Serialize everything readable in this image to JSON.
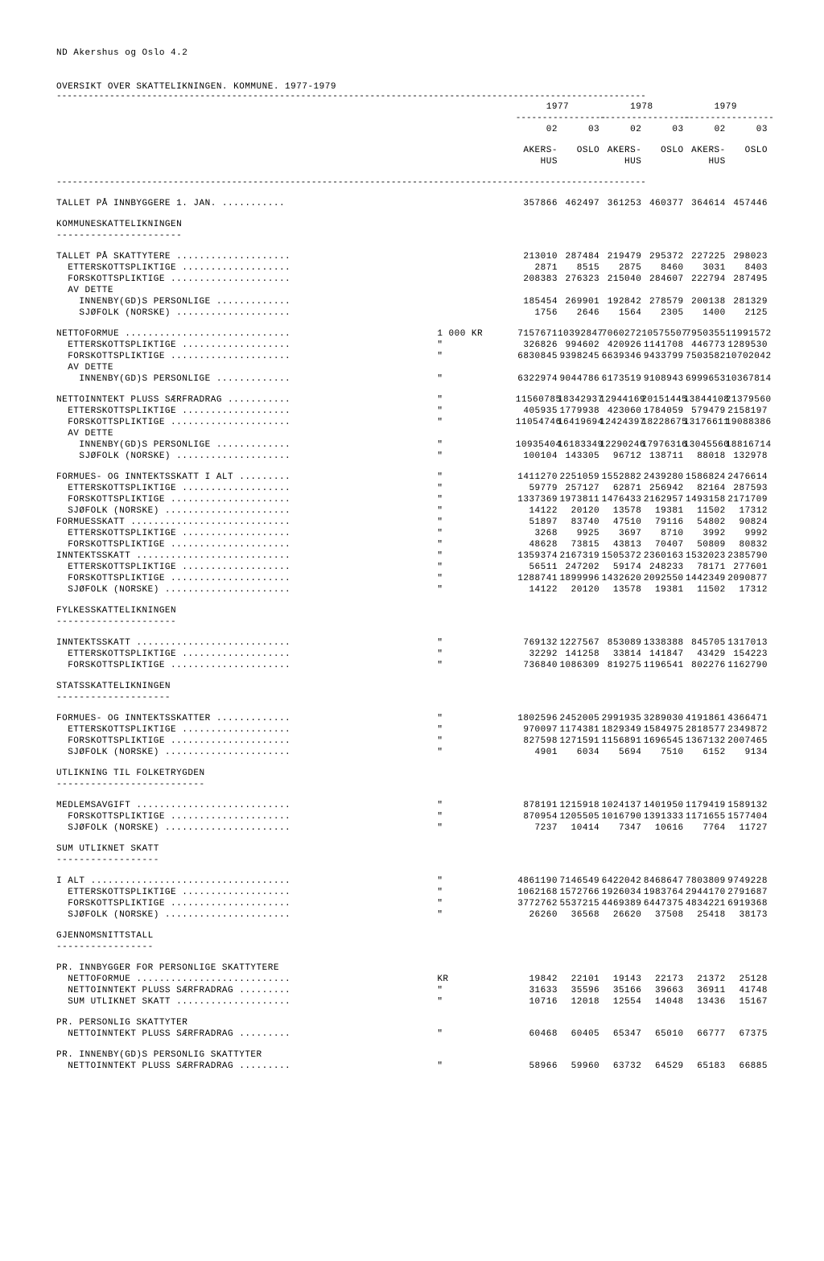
{
  "header_line": "ND Akershus og Oslo  4.2",
  "title": "OVERSIKT OVER SKATTELIKNINGEN. KOMMUNE. 1977-1979",
  "year_headers": [
    "1977",
    "1978",
    "1979"
  ],
  "col_codes": [
    "02",
    "03",
    "02",
    "03",
    "02",
    "03"
  ],
  "col_names_l1": [
    "AKERS-",
    "OSLO",
    "AKERS-",
    "OSLO",
    "AKERS-",
    "OSLO"
  ],
  "col_names_l2": [
    "HUS",
    "",
    "HUS",
    "",
    "HUS",
    ""
  ],
  "unit_1000kr": "1 000 KR",
  "unit_ditto": "\"",
  "unit_kr": "KR",
  "rows": {
    "r0": {
      "label": "TALLET PÅ INNBYGGERE 1. JAN. ...........",
      "unit": "",
      "v": [
        "357866",
        "462497",
        "361253",
        "460377",
        "364614",
        "457446"
      ]
    },
    "s1": {
      "label": "KOMMUNESKATTELIKNINGEN"
    },
    "s1u": {
      "label": "----------------------"
    },
    "r1": {
      "label": "TALLET PÅ SKATTYTERE ....................",
      "unit": "",
      "v": [
        "213010",
        "287484",
        "219479",
        "295372",
        "227225",
        "298023"
      ]
    },
    "r2": {
      "label": "  ETTERSKOTTSPLIKTIGE ...................",
      "unit": "",
      "v": [
        "2871",
        "8515",
        "2875",
        "8460",
        "3031",
        "8403"
      ]
    },
    "r3": {
      "label": "  FORSKOTTSPLIKTIGE .....................",
      "unit": "",
      "v": [
        "208383",
        "276323",
        "215040",
        "284607",
        "222794",
        "287495"
      ]
    },
    "r4": {
      "label": "  AV DETTE",
      "unit": "",
      "v": [
        "",
        "",
        "",
        "",
        "",
        ""
      ]
    },
    "r5": {
      "label": "    INNENBY(GD)S PERSONLIGE .............",
      "unit": "",
      "v": [
        "185454",
        "269901",
        "192842",
        "278579",
        "200138",
        "281329"
      ]
    },
    "r6": {
      "label": "    SJØFOLK (NORSKE) ....................",
      "unit": "",
      "v": [
        "1756",
        "2646",
        "1564",
        "2305",
        "1400",
        "2125"
      ]
    },
    "r7": {
      "label": "NETTOFORMUE .............................",
      "unit": "1 000 KR",
      "v": [
        "7157671",
        "10392847",
        "7060272",
        "10575507",
        "7950355",
        "11991572"
      ]
    },
    "r8": {
      "label": "  ETTERSKOTTSPLIKTIGE ...................",
      "unit": "\"",
      "v": [
        "326826",
        "994602",
        "420926",
        "1141708",
        "446773",
        "1289530"
      ]
    },
    "r9": {
      "label": "  FORSKOTTSPLIKTIGE .....................",
      "unit": "\"",
      "v": [
        "6830845",
        "9398245",
        "6639346",
        "9433799",
        "7503582",
        "10702042"
      ]
    },
    "r10": {
      "label": "  AV DETTE",
      "unit": "",
      "v": [
        "",
        "",
        "",
        "",
        "",
        ""
      ]
    },
    "r11": {
      "label": "    INNENBY(GD)S PERSONLIGE .............",
      "unit": "\"",
      "v": [
        "6322974",
        "9044786",
        "6173519",
        "9108943",
        "6999653",
        "10367814"
      ]
    },
    "r12": {
      "label": "NETTOINNTEKT PLUSS SÆRFRADRAG ...........",
      "unit": "\"",
      "v": [
        "11560785",
        "18342937",
        "12944169",
        "20151445",
        "13844108",
        "21379560"
      ]
    },
    "r13": {
      "label": "  ETTERSKOTTSPLIKTIGE ...................",
      "unit": "\"",
      "v": [
        "405935",
        "1779938",
        "423060",
        "1784059",
        "579479",
        "2158197"
      ]
    },
    "r14": {
      "label": "  FORSKOTTSPLIKTIGE .....................",
      "unit": "\"",
      "v": [
        "11054746",
        "16419694",
        "12424397",
        "18228675",
        "13176611",
        "19088386"
      ]
    },
    "r15": {
      "label": "  AV DETTE",
      "unit": "",
      "v": [
        "",
        "",
        "",
        "",
        "",
        ""
      ]
    },
    "r16": {
      "label": "    INNENBY(GD)S PERSONLIGE .............",
      "unit": "\"",
      "v": [
        "10935404",
        "16183349",
        "12290246",
        "17976316",
        "13045560",
        "18816714"
      ]
    },
    "r17": {
      "label": "    SJØFOLK (NORSKE) ....................",
      "unit": "\"",
      "v": [
        "100104",
        "143305",
        "96712",
        "138711",
        "88018",
        "132978"
      ]
    },
    "r18": {
      "label": "FORMUES- OG INNTEKTSSKATT I ALT .........",
      "unit": "\"",
      "v": [
        "1411270",
        "2251059",
        "1552882",
        "2439280",
        "1586824",
        "2476614"
      ]
    },
    "r19": {
      "label": "  ETTERSKOTTSPLIKTIGE ...................",
      "unit": "\"",
      "v": [
        "59779",
        "257127",
        "62871",
        "256942",
        "82164",
        "287593"
      ]
    },
    "r20": {
      "label": "  FORSKOTTSPLIKTIGE .....................",
      "unit": "\"",
      "v": [
        "1337369",
        "1973811",
        "1476433",
        "2162957",
        "1493158",
        "2171709"
      ]
    },
    "r21": {
      "label": "  SJØFOLK (NORSKE) ......................",
      "unit": "\"",
      "v": [
        "14122",
        "20120",
        "13578",
        "19381",
        "11502",
        "17312"
      ]
    },
    "r22": {
      "label": "FORMUESSKATT ............................",
      "unit": "\"",
      "v": [
        "51897",
        "83740",
        "47510",
        "79116",
        "54802",
        "90824"
      ]
    },
    "r23": {
      "label": "  ETTERSKOTTSPLIKTIGE ...................",
      "unit": "\"",
      "v": [
        "3268",
        "9925",
        "3697",
        "8710",
        "3992",
        "9992"
      ]
    },
    "r24": {
      "label": "  FORSKOTTSPLIKTIGE .....................",
      "unit": "\"",
      "v": [
        "48628",
        "73815",
        "43813",
        "70407",
        "50809",
        "80832"
      ]
    },
    "r25": {
      "label": "INNTEKTSSKATT ...........................",
      "unit": "\"",
      "v": [
        "1359374",
        "2167319",
        "1505372",
        "2360163",
        "1532023",
        "2385790"
      ]
    },
    "r26": {
      "label": "  ETTERSKOTTSPLIKTIGE ...................",
      "unit": "\"",
      "v": [
        "56511",
        "247202",
        "59174",
        "248233",
        "78171",
        "277601"
      ]
    },
    "r27": {
      "label": "  FORSKOTTSPLIKTIGE .....................",
      "unit": "\"",
      "v": [
        "1288741",
        "1899996",
        "1432620",
        "2092550",
        "1442349",
        "2090877"
      ]
    },
    "r28": {
      "label": "  SJØFOLK (NORSKE) ......................",
      "unit": "\"",
      "v": [
        "14122",
        "20120",
        "13578",
        "19381",
        "11502",
        "17312"
      ]
    },
    "s2": {
      "label": "FYLKESSKATTELIKNINGEN"
    },
    "s2u": {
      "label": "---------------------"
    },
    "r29": {
      "label": "INNTEKTSSKATT ...........................",
      "unit": "\"",
      "v": [
        "769132",
        "1227567",
        "853089",
        "1338388",
        "845705",
        "1317013"
      ]
    },
    "r30": {
      "label": "  ETTERSKOTTSPLIKTIGE ...................",
      "unit": "\"",
      "v": [
        "32292",
        "141258",
        "33814",
        "141847",
        "43429",
        "154223"
      ]
    },
    "r31": {
      "label": "  FORSKOTTSPLIKTIGE .....................",
      "unit": "\"",
      "v": [
        "736840",
        "1086309",
        "819275",
        "1196541",
        "802276",
        "1162790"
      ]
    },
    "s3": {
      "label": "STATSSKATTELIKNINGEN"
    },
    "s3u": {
      "label": "--------------------"
    },
    "r32": {
      "label": "FORMUES- OG INNTEKTSSKATTER .............",
      "unit": "\"",
      "v": [
        "1802596",
        "2452005",
        "2991935",
        "3289030",
        "4191861",
        "4366471"
      ]
    },
    "r33": {
      "label": "  ETTERSKOTTSPLIKTIGE ...................",
      "unit": "\"",
      "v": [
        "970097",
        "1174381",
        "1829349",
        "1584975",
        "2818577",
        "2349872"
      ]
    },
    "r34": {
      "label": "  FORSKOTTSPLIKTIGE .....................",
      "unit": "\"",
      "v": [
        "827598",
        "1271591",
        "1156891",
        "1696545",
        "1367132",
        "2007465"
      ]
    },
    "r35": {
      "label": "  SJØFOLK (NORSKE) ......................",
      "unit": "\"",
      "v": [
        "4901",
        "6034",
        "5694",
        "7510",
        "6152",
        "9134"
      ]
    },
    "s4": {
      "label": "UTLIKNING TIL FOLKETRYGDEN"
    },
    "s4u": {
      "label": "--------------------------"
    },
    "r36": {
      "label": "MEDLEMSAVGIFT ...........................",
      "unit": "\"",
      "v": [
        "878191",
        "1215918",
        "1024137",
        "1401950",
        "1179419",
        "1589132"
      ]
    },
    "r37": {
      "label": "  FORSKOTTSPLIKTIGE .....................",
      "unit": "\"",
      "v": [
        "870954",
        "1205505",
        "1016790",
        "1391333",
        "1171655",
        "1577404"
      ]
    },
    "r38": {
      "label": "  SJØFOLK (NORSKE) ......................",
      "unit": "\"",
      "v": [
        "7237",
        "10414",
        "7347",
        "10616",
        "7764",
        "11727"
      ]
    },
    "s5": {
      "label": "SUM UTLIKNET SKATT"
    },
    "s5u": {
      "label": "------------------"
    },
    "r39": {
      "label": "I ALT ...................................",
      "unit": "\"",
      "v": [
        "4861190",
        "7146549",
        "6422042",
        "8468647",
        "7803809",
        "9749228"
      ]
    },
    "r40": {
      "label": "  ETTERSKOTTSPLIKTIGE ...................",
      "unit": "\"",
      "v": [
        "1062168",
        "1572766",
        "1926034",
        "1983764",
        "2944170",
        "2791687"
      ]
    },
    "r41": {
      "label": "  FORSKOTTSPLIKTIGE .....................",
      "unit": "\"",
      "v": [
        "3772762",
        "5537215",
        "4469389",
        "6447375",
        "4834221",
        "6919368"
      ]
    },
    "r42": {
      "label": "  SJØFOLK (NORSKE) ......................",
      "unit": "\"",
      "v": [
        "26260",
        "36568",
        "26620",
        "37508",
        "25418",
        "38173"
      ]
    },
    "s6": {
      "label": "GJENNOMSNITTSTALL"
    },
    "s6u": {
      "label": "-----------------"
    },
    "r43": {
      "label": "PR. INNBYGGER FOR PERSONLIGE SKATTYTERE",
      "unit": "",
      "v": [
        "",
        "",
        "",
        "",
        "",
        ""
      ]
    },
    "r44": {
      "label": "  NETTOFORMUE ...........................",
      "unit": "KR",
      "v": [
        "19842",
        "22101",
        "19143",
        "22173",
        "21372",
        "25128"
      ]
    },
    "r45": {
      "label": "  NETTOINNTEKT PLUSS SÆRFRADRAG .........",
      "unit": "\"",
      "v": [
        "31633",
        "35596",
        "35166",
        "39663",
        "36911",
        "41748"
      ]
    },
    "r46": {
      "label": "  SUM UTLIKNET SKATT ....................",
      "unit": "\"",
      "v": [
        "10716",
        "12018",
        "12554",
        "14048",
        "13436",
        "15167"
      ]
    },
    "r47": {
      "label": "PR. PERSONLIG SKATTYTER",
      "unit": "",
      "v": [
        "",
        "",
        "",
        "",
        "",
        ""
      ]
    },
    "r48": {
      "label": "  NETTOINNTEKT PLUSS SÆRFRADRAG .........",
      "unit": "\"",
      "v": [
        "60468",
        "60405",
        "65347",
        "65010",
        "66777",
        "67375"
      ]
    },
    "r49": {
      "label": "PR. INNENBY(GD)S PERSONLIG SKATTYTER",
      "unit": "",
      "v": [
        "",
        "",
        "",
        "",
        "",
        ""
      ]
    },
    "r50": {
      "label": "  NETTOINNTEKT PLUSS SÆRFRADRAG .........",
      "unit": "\"",
      "v": [
        "58966",
        "59960",
        "63732",
        "64529",
        "65183",
        "66885"
      ]
    }
  },
  "row_order": [
    "r0",
    "GAP",
    "s1",
    "s1u",
    "GAP",
    "r1",
    "r2",
    "r3",
    "r4",
    "r5",
    "r6",
    "GAP",
    "r7",
    "r8",
    "r9",
    "r10",
    "r11",
    "GAP",
    "r12",
    "r13",
    "r14",
    "r15",
    "r16",
    "r17",
    "GAP",
    "r18",
    "r19",
    "r20",
    "r21",
    "r22",
    "r23",
    "r24",
    "r25",
    "r26",
    "r27",
    "r28",
    "GAP",
    "s2",
    "s2u",
    "GAP",
    "r29",
    "r30",
    "r31",
    "GAP",
    "s3",
    "s3u",
    "GAP",
    "r32",
    "r33",
    "r34",
    "r35",
    "GAP",
    "s4",
    "s4u",
    "GAP",
    "r36",
    "r37",
    "r38",
    "GAP",
    "s5",
    "s5u",
    "GAP",
    "r39",
    "r40",
    "r41",
    "r42",
    "GAP",
    "s6",
    "s6u",
    "GAP",
    "r43",
    "r44",
    "r45",
    "r46",
    "GAP",
    "r47",
    "r48",
    "GAP",
    "r49",
    "r50"
  ]
}
